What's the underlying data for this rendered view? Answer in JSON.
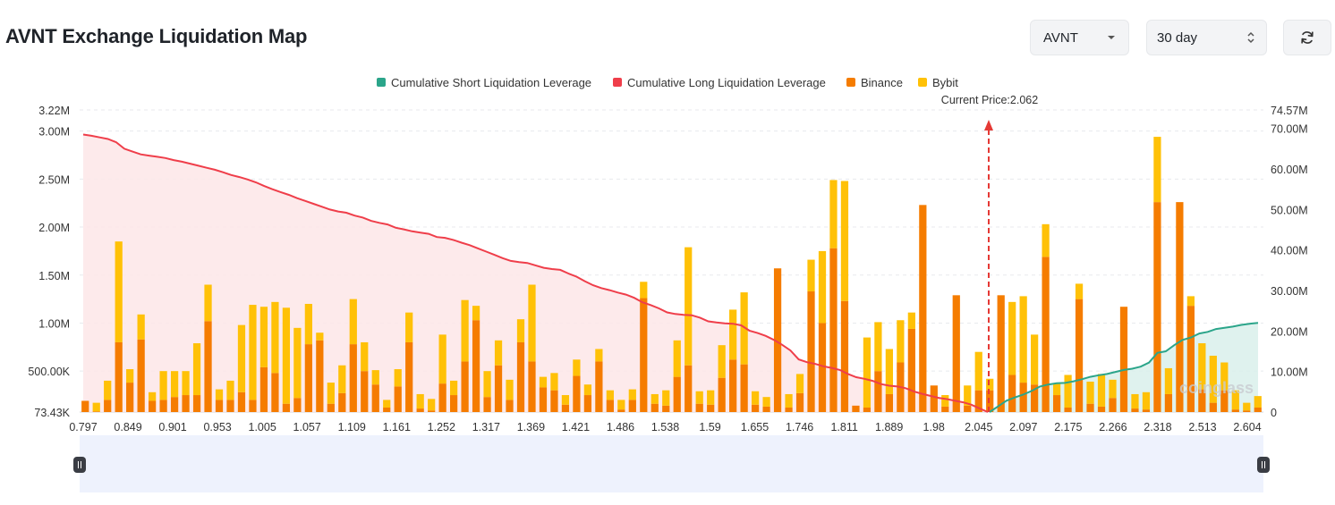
{
  "header": {
    "title": "AVNT Exchange Liquidation Map",
    "symbol_select": "AVNT",
    "range_select": "30 day"
  },
  "colors": {
    "short_line": "#2ba58a",
    "short_fill": "#d9f0eb",
    "long_line": "#ef3e4a",
    "long_fill": "#fde6e7",
    "binance": "#f57c00",
    "bybit": "#ffc107",
    "current_price": "#e53935",
    "slider_bg": "#eef2fd"
  },
  "watermark": "coinglass",
  "chart_data": {
    "type": "bar",
    "current_price_label": "Current Price:2.062",
    "current_price": 2.062,
    "legend": [
      {
        "key": "short",
        "label": "Cumulative Short Liquidation Leverage",
        "color": "#2ba58a"
      },
      {
        "key": "long",
        "label": "Cumulative Long Liquidation Leverage",
        "color": "#ef3e4a"
      },
      {
        "key": "binance",
        "label": "Binance",
        "color": "#f57c00"
      },
      {
        "key": "bybit",
        "label": "Bybit",
        "color": "#ffc107"
      }
    ],
    "left_axis": {
      "min": 73430,
      "max": 3220000,
      "ticks": [
        {
          "value": 73430,
          "label": "73.43K"
        },
        {
          "value": 500000,
          "label": "500.00K"
        },
        {
          "value": 1000000,
          "label": "1.00M"
        },
        {
          "value": 1500000,
          "label": "1.50M"
        },
        {
          "value": 2000000,
          "label": "2.00M"
        },
        {
          "value": 2500000,
          "label": "2.50M"
        },
        {
          "value": 3000000,
          "label": "3.00M"
        },
        {
          "value": 3220000,
          "label": "3.22M"
        }
      ]
    },
    "right_axis": {
      "min": 0,
      "max": 74570000,
      "ticks": [
        {
          "value": 0,
          "label": "0"
        },
        {
          "value": 10000000,
          "label": "10.00M"
        },
        {
          "value": 20000000,
          "label": "20.00M"
        },
        {
          "value": 30000000,
          "label": "30.00M"
        },
        {
          "value": 40000000,
          "label": "40.00M"
        },
        {
          "value": 50000000,
          "label": "50.00M"
        },
        {
          "value": 60000000,
          "label": "60.00M"
        },
        {
          "value": 70000000,
          "label": "70.00M"
        },
        {
          "value": 74570000,
          "label": "74.57M"
        }
      ]
    },
    "x_tick_labels": [
      "0.797",
      "0.849",
      "0.901",
      "0.953",
      "1.005",
      "1.057",
      "1.109",
      "1.161",
      "1.252",
      "1.317",
      "1.369",
      "1.421",
      "1.486",
      "1.538",
      "1.59",
      "1.655",
      "1.746",
      "1.811",
      "1.889",
      "1.98",
      "2.045",
      "2.097",
      "2.175",
      "2.266",
      "2.318",
      "2.513",
      "2.604"
    ],
    "bar_count": 106,
    "binance": [
      190000,
      80000,
      200000,
      800000,
      380000,
      830000,
      190000,
      200000,
      230000,
      250000,
      250000,
      1020000,
      200000,
      200000,
      280000,
      200000,
      540000,
      480000,
      160000,
      220000,
      780000,
      820000,
      160000,
      270000,
      780000,
      500000,
      360000,
      120000,
      340000,
      800000,
      110000,
      90000,
      370000,
      250000,
      600000,
      1030000,
      230000,
      560000,
      200000,
      800000,
      600000,
      330000,
      300000,
      150000,
      450000,
      250000,
      600000,
      200000,
      100000,
      200000,
      1260000,
      160000,
      140000,
      440000,
      560000,
      160000,
      150000,
      430000,
      620000,
      570000,
      150000,
      130000,
      1570000,
      120000,
      270000,
      1330000,
      1000000,
      1780000,
      1230000,
      140000,
      120000,
      500000,
      260000,
      590000,
      940000,
      2230000,
      350000,
      130000,
      1290000,
      140000,
      300000,
      300000,
      1290000,
      460000,
      380000,
      360000,
      1690000,
      250000,
      120000,
      1250000,
      160000,
      130000,
      220000,
      1170000,
      110000,
      100000,
      2260000,
      260000,
      2260000,
      1180000,
      310000,
      170000,
      300000,
      100000,
      90000,
      120000
    ],
    "bybit": [
      0,
      90000,
      200000,
      1050000,
      140000,
      260000,
      90000,
      300000,
      270000,
      250000,
      540000,
      380000,
      110000,
      200000,
      700000,
      990000,
      630000,
      740000,
      1000000,
      730000,
      420000,
      80000,
      220000,
      290000,
      470000,
      300000,
      150000,
      80000,
      180000,
      310000,
      150000,
      120000,
      510000,
      150000,
      640000,
      150000,
      270000,
      260000,
      210000,
      240000,
      800000,
      110000,
      180000,
      100000,
      170000,
      110000,
      130000,
      100000,
      100000,
      110000,
      170000,
      100000,
      160000,
      380000,
      1230000,
      130000,
      150000,
      340000,
      520000,
      750000,
      140000,
      100000,
      0,
      140000,
      200000,
      330000,
      750000,
      710000,
      1250000,
      0,
      730000,
      510000,
      470000,
      440000,
      170000,
      0,
      0,
      120000,
      0,
      210000,
      400000,
      120000,
      0,
      760000,
      900000,
      520000,
      340000,
      120000,
      340000,
      160000,
      230000,
      340000,
      190000,
      0,
      150000,
      180000,
      680000,
      270000,
      0,
      100000,
      480000,
      490000,
      290000,
      200000,
      80000,
      120000
    ],
    "long_cumulative": [
      68500000,
      68200000,
      67800000,
      67400000,
      66600000,
      65000000,
      64300000,
      63600000,
      63300000,
      63000000,
      62700000,
      62200000,
      61800000,
      61300000,
      60800000,
      60300000,
      59800000,
      59200000,
      58500000,
      58000000,
      57400000,
      56700000,
      55800000,
      55000000,
      54300000,
      53600000,
      52800000,
      52100000,
      51400000,
      50700000,
      50000000,
      49500000,
      49200000,
      48500000,
      48000000,
      47200000,
      46700000,
      46300000,
      45500000,
      45100000,
      44600000,
      44300000,
      44000000,
      43200000,
      43000000,
      42500000,
      41800000,
      41200000,
      40400000,
      39600000,
      38800000,
      38000000,
      37300000,
      37000000,
      36800000,
      36200000,
      35600000,
      35300000,
      35100000,
      34200000,
      33400000,
      32300000,
      31300000,
      30600000,
      30100000,
      29500000,
      29000000,
      28200000,
      27100000,
      26400000,
      25600000,
      24600000,
      24200000,
      24000000,
      23900000,
      23300000,
      22400000,
      22100000,
      21900000,
      21800000,
      21400000,
      20100000,
      19500000,
      18800000,
      17800000,
      16600000,
      15200000,
      13000000,
      12300000,
      11900000,
      11300000,
      10900000,
      10400000,
      9400000,
      8600000,
      8200000,
      7700000,
      6900000,
      6500000,
      6300000,
      5900000,
      5100000,
      4500000,
      4000000,
      3500000,
      3200000,
      2800000,
      2400000,
      1800000,
      900000,
      0
    ],
    "short_cumulative": [
      0,
      1400000,
      2800000,
      3600000,
      4300000,
      5200000,
      6300000,
      6800000,
      7100000,
      7200000,
      7600000,
      8100000,
      8700000,
      9100000,
      9400000,
      9900000,
      10400000,
      10700000,
      11200000,
      12200000,
      14600000,
      15000000,
      16500000,
      17800000,
      18400000,
      19400000,
      19800000,
      20500000,
      20800000,
      21100000,
      21500000,
      21800000,
      22000000
    ]
  }
}
